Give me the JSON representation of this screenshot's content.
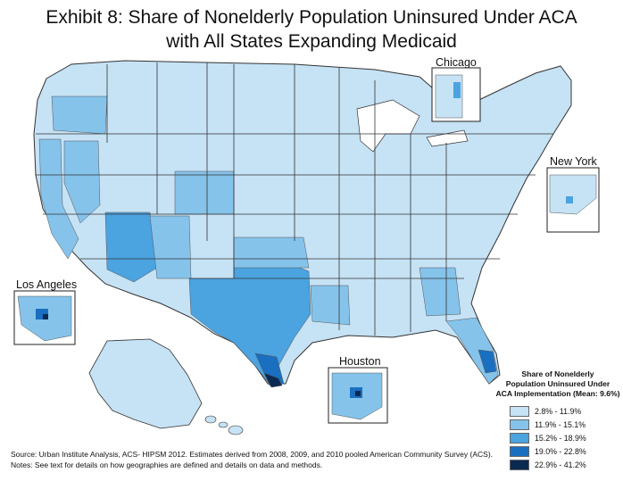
{
  "title": {
    "line1": "Exhibit 8: Share of Nonelderly Population Uninsured Under ACA",
    "line2": "with All States Expanding Medicaid"
  },
  "insets": {
    "chicago": "Chicago",
    "new_york": "New York",
    "los_angeles": "Los Angeles",
    "houston": "Houston"
  },
  "legend": {
    "title_lines": [
      "Share of Nonelderly",
      "Population Uninsured Under",
      "ACA Implementation (Mean: 9.6%)"
    ],
    "items": [
      {
        "label": "2.8% - 11.9%",
        "color": "#c6e2f5"
      },
      {
        "label": "11.9% - 15.1%",
        "color": "#85c3eb"
      },
      {
        "label": "15.2% - 18.9%",
        "color": "#4ba3e0"
      },
      {
        "label": "19.0% - 22.8%",
        "color": "#1a6fc0"
      },
      {
        "label": "22.9% - 41.2%",
        "color": "#0b2a52"
      }
    ]
  },
  "notes": {
    "source": "Source: Urban Institute Analysis, ACS- HIPSM 2012. Estimates derived from 2008, 2009, and 2010 pooled American Community Survey (ACS).",
    "notes": "Notes: See text for details on how geographies are defined and details on data and methods."
  },
  "colors": {
    "base": "#c6e2f5",
    "mid": "#85c3eb",
    "high": "#4ba3e0",
    "higher": "#1a6fc0",
    "highest": "#0b2a52",
    "borders": "#333333"
  }
}
